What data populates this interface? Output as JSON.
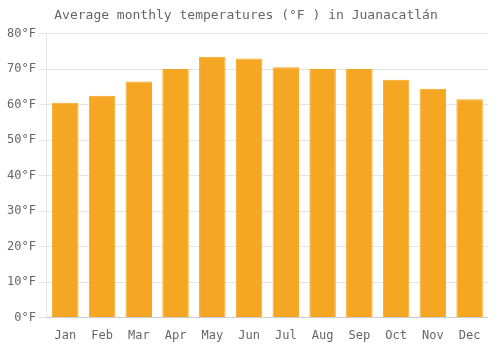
{
  "chart_data": {
    "type": "bar",
    "title": "Average monthly temperatures (°F ) in Juanacatlán",
    "categories": [
      "Jan",
      "Feb",
      "Mar",
      "Apr",
      "May",
      "Jun",
      "Jul",
      "Aug",
      "Sep",
      "Oct",
      "Nov",
      "Dec"
    ],
    "values": [
      60.5,
      62.5,
      66.5,
      70.0,
      73.5,
      73.0,
      70.5,
      70.0,
      70.0,
      67.0,
      64.5,
      61.5
    ],
    "color": "#F5A623",
    "ylim": [
      0,
      80
    ],
    "yticks": [
      {
        "value": 0,
        "label": "0°F"
      },
      {
        "value": 10,
        "label": "10°F"
      },
      {
        "value": 20,
        "label": "20°F"
      },
      {
        "value": 30,
        "label": "30°F"
      },
      {
        "value": 40,
        "label": "40°F"
      },
      {
        "value": 50,
        "label": "50°F"
      },
      {
        "value": 60,
        "label": "60°F"
      },
      {
        "value": 70,
        "label": "70°F"
      },
      {
        "value": 80,
        "label": "80°F"
      }
    ],
    "grid": "y"
  }
}
